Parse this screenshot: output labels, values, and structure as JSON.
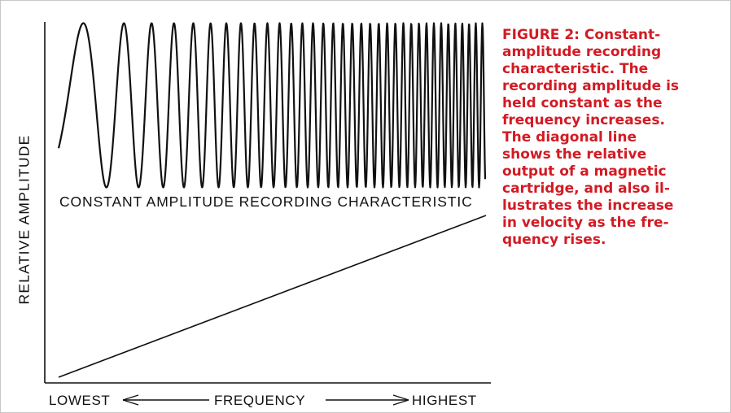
{
  "figure": {
    "caption_lines": [
      "FIGURE 2: Constant-",
      "amplitude recording",
      "characteristic. The",
      "recording amplitude is",
      "held constant as the",
      "frequency increases.",
      "The diagonal line",
      "shows the relative",
      "output of a magnetic",
      "cartridge, and also il-",
      "lustrates the increase",
      "in velocity as the fre-",
      "quency rises."
    ],
    "curve_label": "CONSTANT AMPLITUDE RECORDING CHARACTERISTIC",
    "y_axis_label": "RELATIVE AMPLITUDE",
    "x_axis": {
      "low_label": "LOWEST",
      "center_label": "FREQUENCY",
      "high_label": "HIGHEST"
    },
    "colors": {
      "caption": "#d21b24",
      "lines": "#111111",
      "frame": "#c8c8c8"
    }
  }
}
